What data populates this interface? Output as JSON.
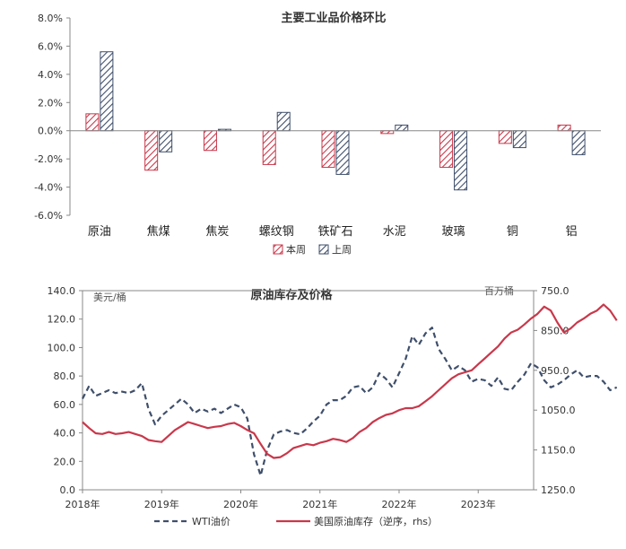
{
  "chart_data": [
    {
      "type": "bar",
      "title": "主要工业品价格环比",
      "categories": [
        "原油",
        "焦煤",
        "焦炭",
        "螺纹钢",
        "铁矿石",
        "水泥",
        "玻璃",
        "铜",
        "铝"
      ],
      "series": [
        {
          "name": "本周",
          "values": [
            1.2,
            -2.8,
            -1.4,
            -2.4,
            -2.6,
            -0.2,
            -2.6,
            -0.9,
            0.4
          ],
          "color": "#c9384b"
        },
        {
          "name": "上周",
          "values": [
            5.6,
            -1.5,
            0.1,
            1.3,
            -3.1,
            0.4,
            -4.2,
            -1.2,
            -1.7
          ],
          "color": "#3f4f6b"
        }
      ],
      "ylim": [
        -6,
        8
      ],
      "yticks": [
        "-6.0%",
        "-4.0%",
        "-2.0%",
        "0.0%",
        "2.0%",
        "4.0%",
        "6.0%",
        "8.0%"
      ],
      "legend": "bottom"
    },
    {
      "type": "line",
      "title": "原油库存及价格",
      "ylabel": "美元/桶",
      "ylabel_right": "百万桶",
      "ylim": [
        0,
        140
      ],
      "ylim_right": [
        1250,
        750
      ],
      "yticks": [
        "0.0",
        "20.0",
        "40.0",
        "60.0",
        "80.0",
        "100.0",
        "120.0",
        "140.0"
      ],
      "yticks_right": [
        "750.0",
        "850.0",
        "950.0",
        "1050.0",
        "1150.0",
        "1250.0"
      ],
      "xticks": [
        "2018年",
        "2019年",
        "2020年",
        "2021年",
        "2022年",
        "2023年"
      ],
      "legend": "bottom",
      "series": [
        {
          "name": "WTI油价",
          "axis": "left",
          "color": "#3f4f6b",
          "dashed": true,
          "points": [
            [
              "2018-01",
              64
            ],
            [
              "2018-02",
              73
            ],
            [
              "2018-03",
              66
            ],
            [
              "2018-04",
              68
            ],
            [
              "2018-05",
              70
            ],
            [
              "2018-06",
              68
            ],
            [
              "2018-07",
              69
            ],
            [
              "2018-08",
              68
            ],
            [
              "2018-09",
              70
            ],
            [
              "2018-10",
              75
            ],
            [
              "2018-11",
              57
            ],
            [
              "2018-12",
              46
            ],
            [
              "2019-01",
              52
            ],
            [
              "2019-02",
              56
            ],
            [
              "2019-03",
              60
            ],
            [
              "2019-04",
              64
            ],
            [
              "2019-05",
              60
            ],
            [
              "2019-06",
              54
            ],
            [
              "2019-07",
              57
            ],
            [
              "2019-08",
              55
            ],
            [
              "2019-09",
              57
            ],
            [
              "2019-10",
              54
            ],
            [
              "2019-11",
              57
            ],
            [
              "2019-12",
              60
            ],
            [
              "2020-01",
              58
            ],
            [
              "2020-02",
              50
            ],
            [
              "2020-03",
              25
            ],
            [
              "2020-04",
              10
            ],
            [
              "2020-05",
              28
            ],
            [
              "2020-06",
              39
            ],
            [
              "2020-07",
              41
            ],
            [
              "2020-08",
              42
            ],
            [
              "2020-09",
              40
            ],
            [
              "2020-10",
              39
            ],
            [
              "2020-11",
              43
            ],
            [
              "2020-12",
              48
            ],
            [
              "2021-01",
              52
            ],
            [
              "2021-02",
              60
            ],
            [
              "2021-03",
              63
            ],
            [
              "2021-04",
              63
            ],
            [
              "2021-05",
              66
            ],
            [
              "2021-06",
              72
            ],
            [
              "2021-07",
              73
            ],
            [
              "2021-08",
              68
            ],
            [
              "2021-09",
              72
            ],
            [
              "2021-10",
              82
            ],
            [
              "2021-11",
              78
            ],
            [
              "2021-12",
              72
            ],
            [
              "2022-01",
              82
            ],
            [
              "2022-02",
              92
            ],
            [
              "2022-03",
              108
            ],
            [
              "2022-04",
              102
            ],
            [
              "2022-05",
              110
            ],
            [
              "2022-06",
              114
            ],
            [
              "2022-07",
              99
            ],
            [
              "2022-08",
              92
            ],
            [
              "2022-09",
              84
            ],
            [
              "2022-10",
              87
            ],
            [
              "2022-11",
              84
            ],
            [
              "2022-12",
              76
            ],
            [
              "2023-01",
              78
            ],
            [
              "2023-02",
              77
            ],
            [
              "2023-03",
              73
            ],
            [
              "2023-04",
              79
            ],
            [
              "2023-05",
              71
            ],
            [
              "2023-06",
              70
            ],
            [
              "2023-07",
              76
            ],
            [
              "2023-08",
              81
            ],
            [
              "2023-09",
              89
            ],
            [
              "2023-10",
              86
            ],
            [
              "2023-11",
              77
            ],
            [
              "2023-12",
              72
            ],
            [
              "2024-01",
              74
            ],
            [
              "2024-02",
              77
            ],
            [
              "2024-03",
              81
            ],
            [
              "2024-04",
              84
            ],
            [
              "2024-05",
              79
            ],
            [
              "2024-06",
              80
            ],
            [
              "2024-07",
              80
            ],
            [
              "2024-08",
              76
            ],
            [
              "2024-09",
              70
            ],
            [
              "2024-10",
              72
            ]
          ]
        },
        {
          "name": "美国原油库存（逆序，rhs）",
          "axis": "right",
          "color": "#c9384b",
          "dashed": false,
          "points": [
            [
              "2018-01",
              1080
            ],
            [
              "2018-02",
              1095
            ],
            [
              "2018-03",
              1108
            ],
            [
              "2018-04",
              1110
            ],
            [
              "2018-05",
              1105
            ],
            [
              "2018-06",
              1110
            ],
            [
              "2018-07",
              1108
            ],
            [
              "2018-08",
              1105
            ],
            [
              "2018-09",
              1110
            ],
            [
              "2018-10",
              1115
            ],
            [
              "2018-11",
              1125
            ],
            [
              "2018-12",
              1128
            ],
            [
              "2019-01",
              1130
            ],
            [
              "2019-02",
              1115
            ],
            [
              "2019-03",
              1100
            ],
            [
              "2019-04",
              1090
            ],
            [
              "2019-05",
              1080
            ],
            [
              "2019-06",
              1085
            ],
            [
              "2019-07",
              1090
            ],
            [
              "2019-08",
              1095
            ],
            [
              "2019-09",
              1092
            ],
            [
              "2019-10",
              1090
            ],
            [
              "2019-11",
              1085
            ],
            [
              "2019-12",
              1082
            ],
            [
              "2020-01",
              1090
            ],
            [
              "2020-02",
              1100
            ],
            [
              "2020-03",
              1108
            ],
            [
              "2020-04",
              1135
            ],
            [
              "2020-05",
              1160
            ],
            [
              "2020-06",
              1170
            ],
            [
              "2020-07",
              1168
            ],
            [
              "2020-08",
              1158
            ],
            [
              "2020-09",
              1145
            ],
            [
              "2020-10",
              1140
            ],
            [
              "2020-11",
              1135
            ],
            [
              "2020-12",
              1138
            ],
            [
              "2021-01",
              1132
            ],
            [
              "2021-02",
              1128
            ],
            [
              "2021-03",
              1122
            ],
            [
              "2021-04",
              1125
            ],
            [
              "2021-05",
              1130
            ],
            [
              "2021-06",
              1120
            ],
            [
              "2021-07",
              1105
            ],
            [
              "2021-08",
              1095
            ],
            [
              "2021-09",
              1080
            ],
            [
              "2021-10",
              1070
            ],
            [
              "2021-11",
              1062
            ],
            [
              "2021-12",
              1058
            ],
            [
              "2022-01",
              1050
            ],
            [
              "2022-02",
              1045
            ],
            [
              "2022-03",
              1045
            ],
            [
              "2022-04",
              1040
            ],
            [
              "2022-05",
              1028
            ],
            [
              "2022-06",
              1015
            ],
            [
              "2022-07",
              1000
            ],
            [
              "2022-08",
              985
            ],
            [
              "2022-09",
              970
            ],
            [
              "2022-10",
              960
            ],
            [
              "2022-11",
              955
            ],
            [
              "2022-12",
              950
            ],
            [
              "2023-01",
              935
            ],
            [
              "2023-02",
              920
            ],
            [
              "2023-03",
              905
            ],
            [
              "2023-04",
              890
            ],
            [
              "2023-05",
              870
            ],
            [
              "2023-06",
              855
            ],
            [
              "2023-07",
              848
            ],
            [
              "2023-08",
              835
            ],
            [
              "2023-09",
              820
            ],
            [
              "2023-10",
              808
            ],
            [
              "2023-11",
              790
            ],
            [
              "2023-12",
              800
            ],
            [
              "2024-01",
              830
            ],
            [
              "2024-02",
              855
            ],
            [
              "2024-03",
              845
            ],
            [
              "2024-04",
              830
            ],
            [
              "2024-05",
              820
            ],
            [
              "2024-06",
              808
            ],
            [
              "2024-07",
              800
            ],
            [
              "2024-08",
              785
            ],
            [
              "2024-09",
              800
            ],
            [
              "2024-10",
              825
            ]
          ]
        }
      ]
    }
  ]
}
